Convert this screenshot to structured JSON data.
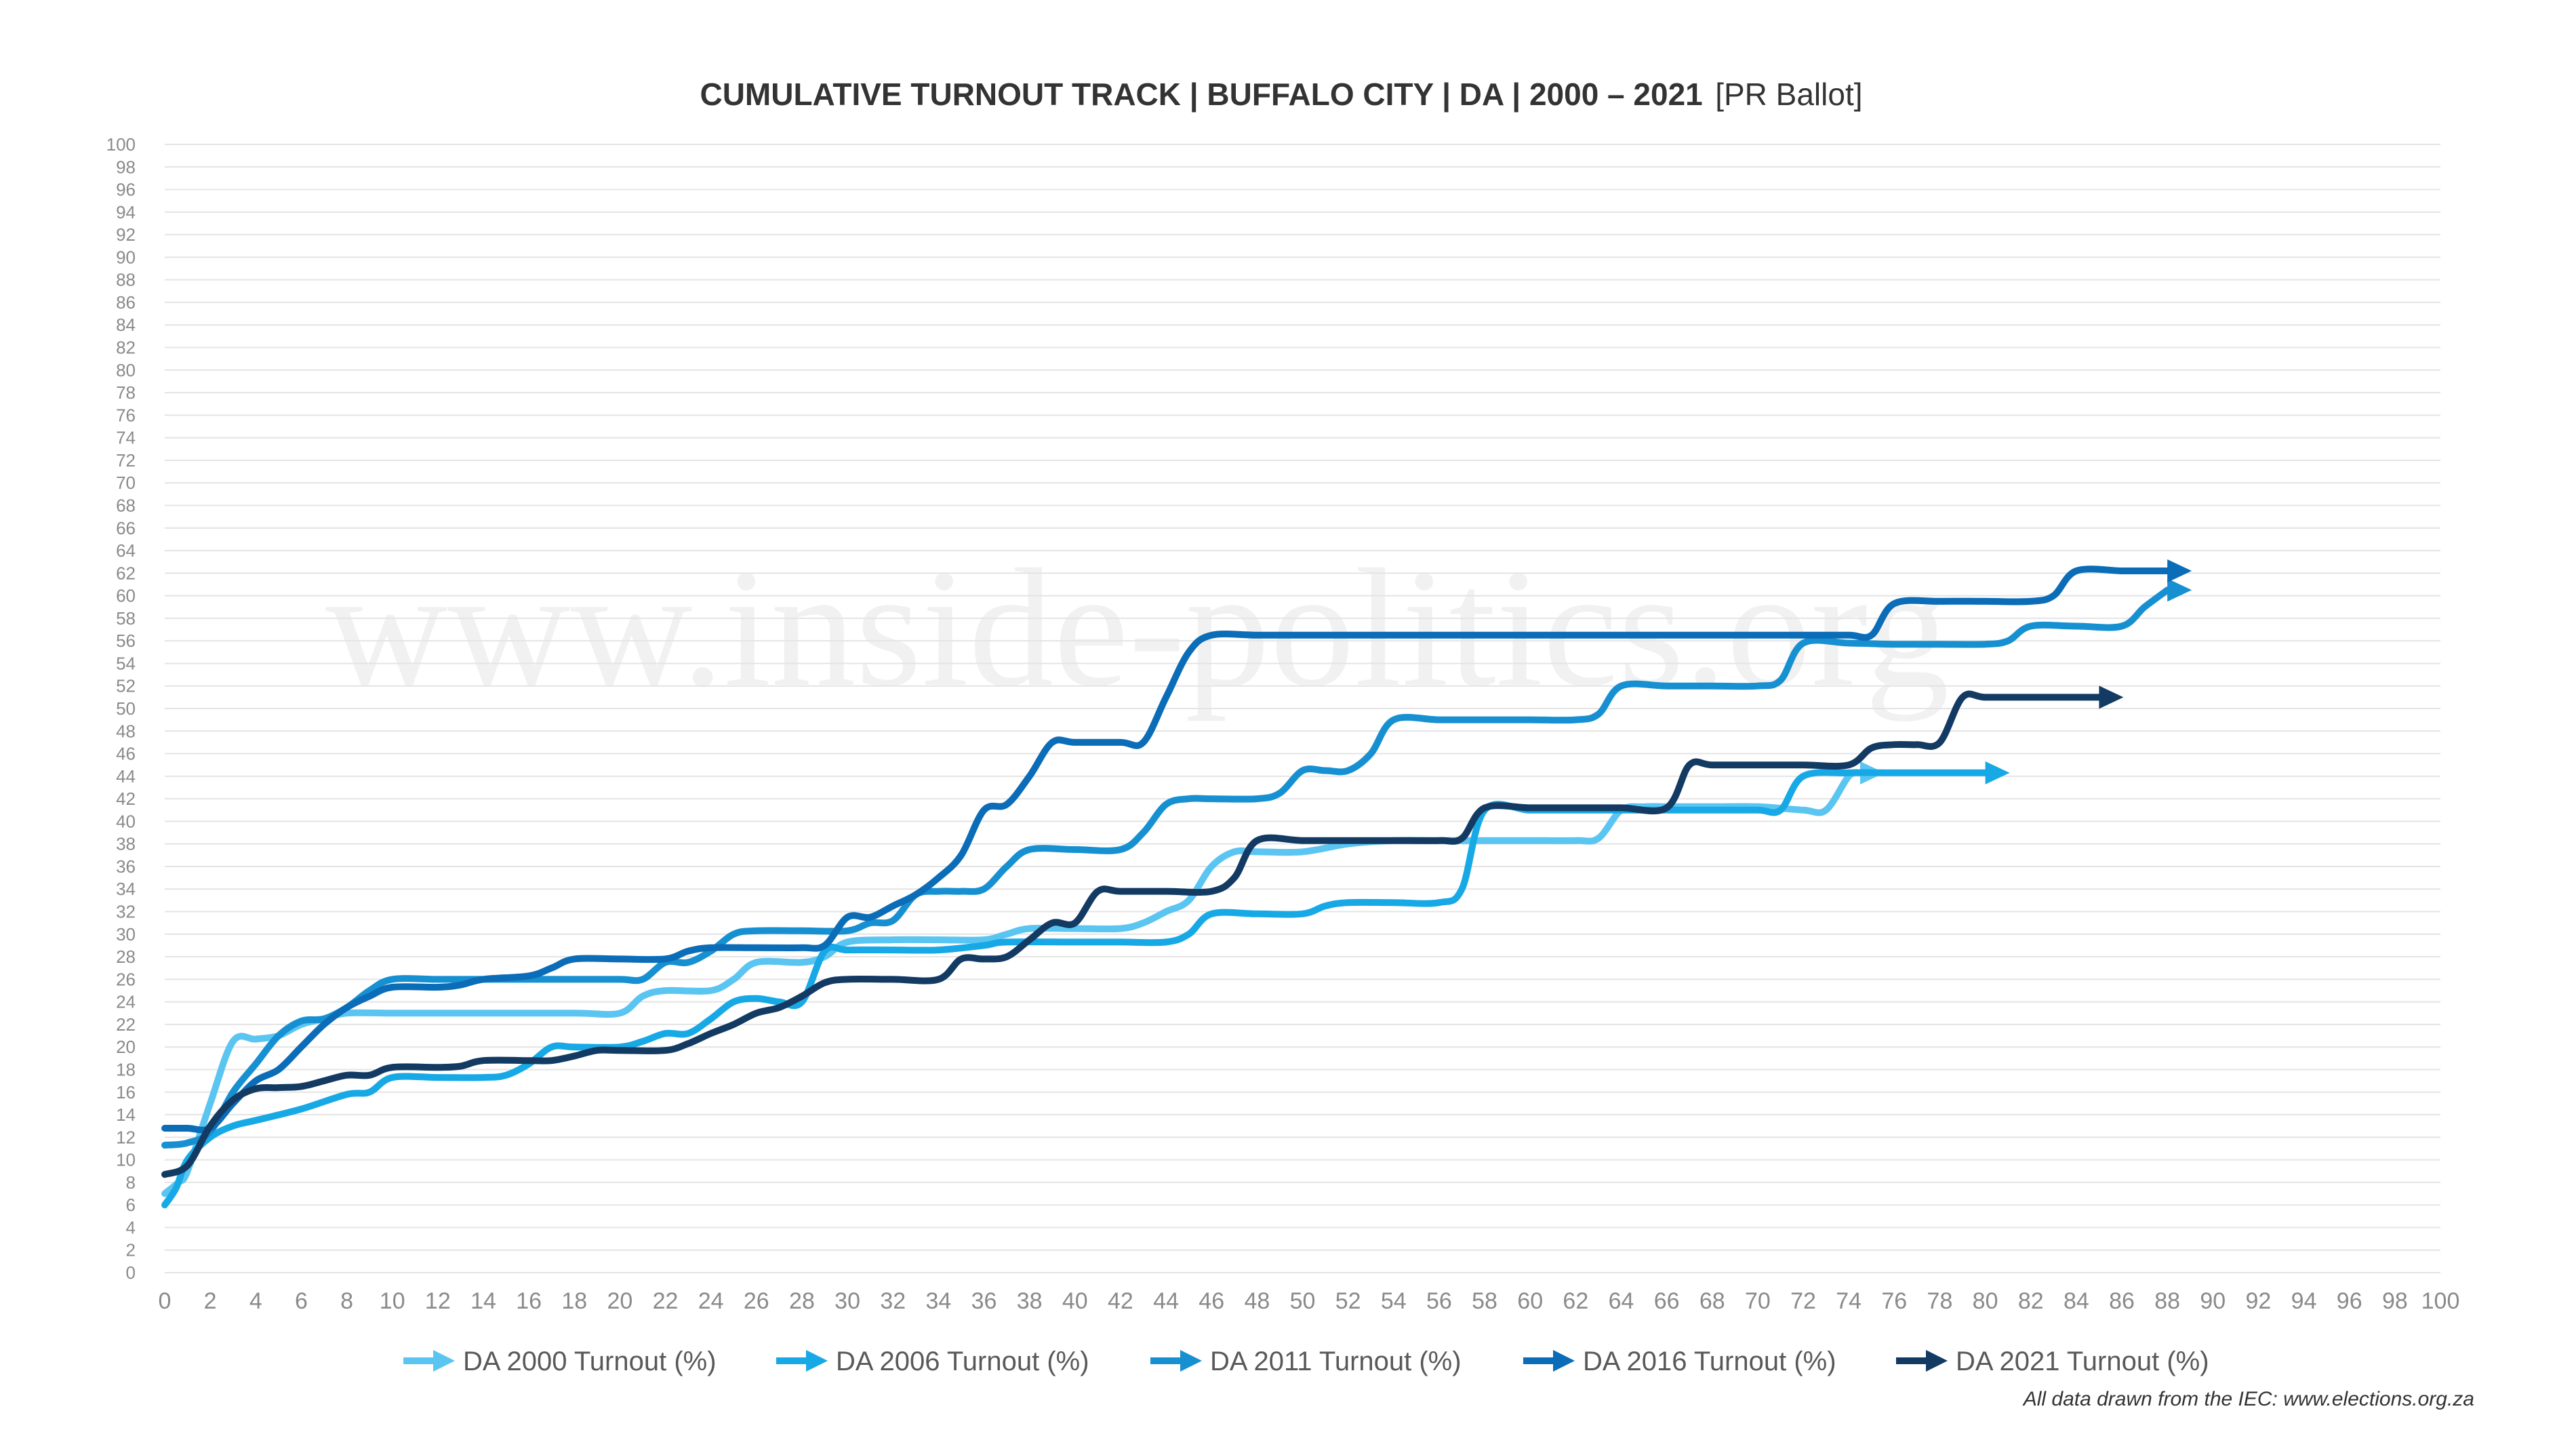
{
  "chart_data": {
    "type": "line",
    "title": "CUMULATIVE TURNOUT TRACK | BUFFALO CITY | DA | 2000 – 2021",
    "subtitle": "[PR Ballot]",
    "xlabel": "",
    "ylabel": "",
    "xlim": [
      0,
      100
    ],
    "ylim": [
      0,
      100
    ],
    "x_ticks": [
      "0",
      "2",
      "4",
      "6",
      "8",
      "10",
      "12",
      "14",
      "16",
      "18",
      "20",
      "22",
      "24",
      "26",
      "28",
      "30",
      "32",
      "34",
      "36",
      "38",
      "40",
      "42",
      "44",
      "46",
      "48",
      "50",
      "52",
      "54",
      "56",
      "58",
      "60",
      "62",
      "64",
      "66",
      "68",
      "70",
      "72",
      "74",
      "76",
      "78",
      "80",
      "82",
      "84",
      "86",
      "88",
      "90",
      "92",
      "94",
      "96",
      "98",
      "100"
    ],
    "y_ticks": [
      "0",
      "2",
      "4",
      "6",
      "8",
      "10",
      "12",
      "14",
      "16",
      "18",
      "20",
      "22",
      "24",
      "26",
      "28",
      "30",
      "32",
      "34",
      "36",
      "38",
      "40",
      "42",
      "44",
      "46",
      "48",
      "50",
      "52",
      "54",
      "56",
      "58",
      "60",
      "62",
      "64",
      "66",
      "68",
      "70",
      "72",
      "74",
      "76",
      "78",
      "80",
      "82",
      "84",
      "86",
      "88",
      "90",
      "92",
      "94",
      "96",
      "98",
      "100"
    ],
    "grid": true,
    "legend_position": "bottom",
    "watermark": "www.inside-politics.org",
    "source_note": "All data drawn from the IEC: www.elections.org.za",
    "series": [
      {
        "name": "DA 2000 Turnout (%)",
        "color": "#5bc5f2",
        "points": [
          [
            0,
            7
          ],
          [
            0.6,
            8
          ],
          [
            1,
            9
          ],
          [
            2,
            15
          ],
          [
            3,
            20.5
          ],
          [
            4,
            20.7
          ],
          [
            5,
            21
          ],
          [
            6,
            22
          ],
          [
            7,
            22.5
          ],
          [
            8,
            23
          ],
          [
            10,
            23
          ],
          [
            14,
            23
          ],
          [
            18,
            23
          ],
          [
            20,
            23
          ],
          [
            21,
            24.5
          ],
          [
            22,
            25
          ],
          [
            24,
            25
          ],
          [
            25,
            26
          ],
          [
            26,
            27.5
          ],
          [
            28,
            27.5
          ],
          [
            29,
            28
          ],
          [
            30,
            29.3
          ],
          [
            32,
            29.5
          ],
          [
            34,
            29.5
          ],
          [
            36,
            29.5
          ],
          [
            37,
            30
          ],
          [
            38,
            30.5
          ],
          [
            40,
            30.5
          ],
          [
            42,
            30.5
          ],
          [
            43,
            31
          ],
          [
            44,
            32
          ],
          [
            45,
            33
          ],
          [
            46,
            36
          ],
          [
            47,
            37.3
          ],
          [
            48,
            37.3
          ],
          [
            50,
            37.3
          ],
          [
            52,
            38
          ],
          [
            54,
            38.3
          ],
          [
            56,
            38.3
          ],
          [
            58,
            38.3
          ],
          [
            60,
            38.3
          ],
          [
            62,
            38.3
          ],
          [
            63,
            38.5
          ],
          [
            64,
            41
          ],
          [
            65,
            41.3
          ],
          [
            66,
            41.3
          ],
          [
            68,
            41.3
          ],
          [
            70,
            41.3
          ],
          [
            72,
            41
          ],
          [
            73,
            41
          ],
          [
            74,
            44
          ],
          [
            74.5,
            44.3
          ]
        ]
      },
      {
        "name": "DA 2006 Turnout (%)",
        "color": "#17a9e6",
        "points": [
          [
            0,
            6
          ],
          [
            0.5,
            7.5
          ],
          [
            1,
            10
          ],
          [
            2,
            12
          ],
          [
            3,
            13
          ],
          [
            4,
            13.5
          ],
          [
            6,
            14.5
          ],
          [
            8,
            15.8
          ],
          [
            9,
            16
          ],
          [
            10,
            17.3
          ],
          [
            12,
            17.3
          ],
          [
            14,
            17.3
          ],
          [
            15,
            17.5
          ],
          [
            16,
            18.5
          ],
          [
            17,
            20
          ],
          [
            18,
            20
          ],
          [
            20,
            20
          ],
          [
            21,
            20.5
          ],
          [
            22,
            21.2
          ],
          [
            23,
            21.2
          ],
          [
            24,
            22.5
          ],
          [
            25,
            24
          ],
          [
            26,
            24.3
          ],
          [
            27,
            24
          ],
          [
            28,
            24
          ],
          [
            29,
            28.5
          ],
          [
            30,
            28.6
          ],
          [
            32,
            28.6
          ],
          [
            34,
            28.6
          ],
          [
            36,
            29
          ],
          [
            37,
            29.3
          ],
          [
            40,
            29.3
          ],
          [
            42,
            29.3
          ],
          [
            44,
            29.3
          ],
          [
            45,
            30
          ],
          [
            46,
            31.8
          ],
          [
            48,
            31.8
          ],
          [
            50,
            31.8
          ],
          [
            51,
            32.5
          ],
          [
            52,
            32.8
          ],
          [
            54,
            32.8
          ],
          [
            56,
            32.8
          ],
          [
            57,
            34
          ],
          [
            58,
            41
          ],
          [
            60,
            41
          ],
          [
            62,
            41
          ],
          [
            64,
            41
          ],
          [
            66,
            41
          ],
          [
            68,
            41
          ],
          [
            70,
            41
          ],
          [
            71,
            41
          ],
          [
            72,
            44
          ],
          [
            74,
            44.3
          ],
          [
            76,
            44.3
          ],
          [
            78,
            44.3
          ],
          [
            80,
            44.3
          ]
        ]
      },
      {
        "name": "DA 2011 Turnout (%)",
        "color": "#1790d2",
        "points": [
          [
            0,
            11.3
          ],
          [
            1,
            11.5
          ],
          [
            2,
            12.5
          ],
          [
            3,
            16
          ],
          [
            4,
            18.5
          ],
          [
            5,
            21
          ],
          [
            6,
            22.3
          ],
          [
            7,
            22.5
          ],
          [
            8,
            23.5
          ],
          [
            9,
            25
          ],
          [
            10,
            26
          ],
          [
            12,
            26
          ],
          [
            14,
            26
          ],
          [
            16,
            26
          ],
          [
            18,
            26
          ],
          [
            20,
            26
          ],
          [
            21,
            26
          ],
          [
            22,
            27.5
          ],
          [
            23,
            27.5
          ],
          [
            24,
            28.5
          ],
          [
            25,
            30
          ],
          [
            26,
            30.3
          ],
          [
            28,
            30.3
          ],
          [
            30,
            30.3
          ],
          [
            31,
            31
          ],
          [
            32,
            31.2
          ],
          [
            33,
            33.5
          ],
          [
            34,
            33.8
          ],
          [
            35,
            33.8
          ],
          [
            36,
            34
          ],
          [
            37,
            36
          ],
          [
            38,
            37.5
          ],
          [
            40,
            37.5
          ],
          [
            42,
            37.5
          ],
          [
            43,
            39
          ],
          [
            44,
            41.5
          ],
          [
            45,
            42
          ],
          [
            46,
            42
          ],
          [
            48,
            42
          ],
          [
            49,
            42.5
          ],
          [
            50,
            44.5
          ],
          [
            51,
            44.5
          ],
          [
            52,
            44.5
          ],
          [
            53,
            46
          ],
          [
            54,
            49
          ],
          [
            56,
            49
          ],
          [
            58,
            49
          ],
          [
            60,
            49
          ],
          [
            62,
            49
          ],
          [
            63,
            49.5
          ],
          [
            64,
            52
          ],
          [
            66,
            52
          ],
          [
            68,
            52
          ],
          [
            70,
            52
          ],
          [
            71,
            52.5
          ],
          [
            72,
            55.8
          ],
          [
            74,
            55.8
          ],
          [
            76,
            55.7
          ],
          [
            78,
            55.7
          ],
          [
            80,
            55.7
          ],
          [
            81,
            56
          ],
          [
            82,
            57.3
          ],
          [
            84,
            57.3
          ],
          [
            86,
            57.3
          ],
          [
            87,
            59
          ],
          [
            88,
            60.5
          ]
        ]
      },
      {
        "name": "DA 2016 Turnout (%)",
        "color": "#0b6cb8",
        "points": [
          [
            0,
            12.8
          ],
          [
            1,
            12.8
          ],
          [
            2,
            12.8
          ],
          [
            3,
            15
          ],
          [
            4,
            17
          ],
          [
            5,
            18
          ],
          [
            6,
            20
          ],
          [
            7,
            22
          ],
          [
            8,
            23.5
          ],
          [
            9,
            24.5
          ],
          [
            10,
            25.3
          ],
          [
            12,
            25.3
          ],
          [
            13,
            25.5
          ],
          [
            14,
            26
          ],
          [
            16,
            26.3
          ],
          [
            17,
            27
          ],
          [
            18,
            27.8
          ],
          [
            20,
            27.8
          ],
          [
            22,
            27.8
          ],
          [
            23,
            28.5
          ],
          [
            24,
            28.8
          ],
          [
            26,
            28.8
          ],
          [
            28,
            28.8
          ],
          [
            29,
            29
          ],
          [
            30,
            31.5
          ],
          [
            31,
            31.5
          ],
          [
            32,
            32.5
          ],
          [
            33,
            33.5
          ],
          [
            34,
            35
          ],
          [
            35,
            37
          ],
          [
            36,
            41
          ],
          [
            37,
            41.5
          ],
          [
            38,
            44
          ],
          [
            39,
            47
          ],
          [
            40,
            47
          ],
          [
            42,
            47
          ],
          [
            43,
            47
          ],
          [
            44,
            51
          ],
          [
            45,
            55
          ],
          [
            46,
            56.5
          ],
          [
            48,
            56.5
          ],
          [
            50,
            56.5
          ],
          [
            52,
            56.5
          ],
          [
            54,
            56.5
          ],
          [
            56,
            56.5
          ],
          [
            58,
            56.5
          ],
          [
            60,
            56.5
          ],
          [
            62,
            56.5
          ],
          [
            64,
            56.5
          ],
          [
            66,
            56.5
          ],
          [
            68,
            56.5
          ],
          [
            70,
            56.5
          ],
          [
            72,
            56.5
          ],
          [
            74,
            56.5
          ],
          [
            75,
            56.5
          ],
          [
            76,
            59.3
          ],
          [
            78,
            59.5
          ],
          [
            80,
            59.5
          ],
          [
            82,
            59.5
          ],
          [
            83,
            60
          ],
          [
            84,
            62.2
          ],
          [
            86,
            62.2
          ],
          [
            87,
            62.2
          ],
          [
            88,
            62.2
          ]
        ]
      },
      {
        "name": "DA 2021 Turnout (%)",
        "color": "#133a63",
        "points": [
          [
            0,
            8.7
          ],
          [
            1,
            9.5
          ],
          [
            2,
            13
          ],
          [
            3,
            15.3
          ],
          [
            4,
            16.3
          ],
          [
            5,
            16.4
          ],
          [
            6,
            16.5
          ],
          [
            7,
            17
          ],
          [
            8,
            17.5
          ],
          [
            9,
            17.5
          ],
          [
            10,
            18.2
          ],
          [
            12,
            18.2
          ],
          [
            13,
            18.3
          ],
          [
            14,
            18.8
          ],
          [
            16,
            18.8
          ],
          [
            17,
            18.8
          ],
          [
            18,
            19.2
          ],
          [
            19,
            19.7
          ],
          [
            20,
            19.7
          ],
          [
            22,
            19.7
          ],
          [
            23,
            20.3
          ],
          [
            24,
            21.2
          ],
          [
            25,
            22
          ],
          [
            26,
            23
          ],
          [
            27,
            23.5
          ],
          [
            28,
            24.5
          ],
          [
            29,
            25.7
          ],
          [
            30,
            26
          ],
          [
            32,
            26
          ],
          [
            34,
            26
          ],
          [
            35,
            27.8
          ],
          [
            36,
            27.8
          ],
          [
            37,
            28
          ],
          [
            38,
            29.5
          ],
          [
            39,
            31
          ],
          [
            40,
            31
          ],
          [
            41,
            33.8
          ],
          [
            42,
            33.8
          ],
          [
            44,
            33.8
          ],
          [
            46,
            33.8
          ],
          [
            47,
            35
          ],
          [
            48,
            38.3
          ],
          [
            50,
            38.3
          ],
          [
            52,
            38.3
          ],
          [
            54,
            38.3
          ],
          [
            56,
            38.3
          ],
          [
            57,
            38.5
          ],
          [
            58,
            41.2
          ],
          [
            60,
            41.2
          ],
          [
            62,
            41.2
          ],
          [
            64,
            41.2
          ],
          [
            66,
            41.2
          ],
          [
            67,
            45
          ],
          [
            68,
            45
          ],
          [
            70,
            45
          ],
          [
            72,
            45
          ],
          [
            74,
            45
          ],
          [
            75,
            46.5
          ],
          [
            76,
            46.8
          ],
          [
            77,
            46.8
          ],
          [
            78,
            47
          ],
          [
            79,
            51
          ],
          [
            80,
            51
          ],
          [
            82,
            51
          ],
          [
            84,
            51
          ],
          [
            85,
            51
          ]
        ]
      }
    ]
  }
}
